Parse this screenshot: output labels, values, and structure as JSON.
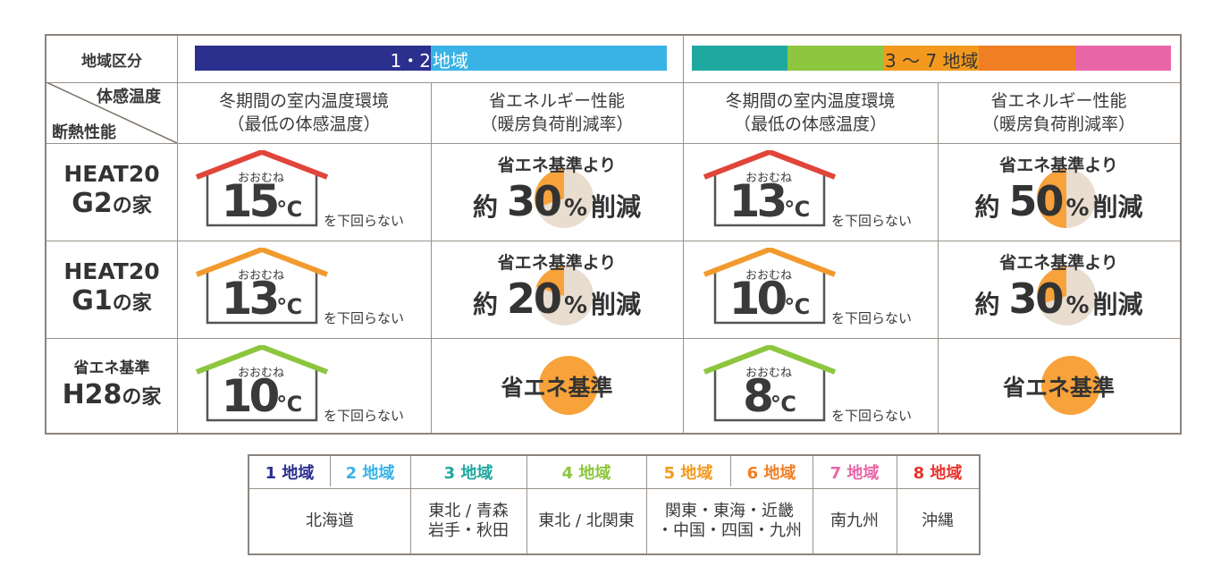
{
  "header": {
    "region_category_label": "地域区分",
    "group_a_label": "1・2地域",
    "group_a_label_left": "1・2",
    "group_a_label_right": "地域",
    "group_b_label": "3 〜 7 地域",
    "diag_top": "体感温度",
    "diag_bottom": "断熱性能",
    "col_indoor_l1": "冬期間の室内温度環境",
    "col_indoor_l2": "（最低の体感温度）",
    "col_energy_l1": "省エネルギー性能",
    "col_energy_l2": "（暖房負荷削減率）"
  },
  "rows": [
    {
      "name_l1": "HEAT20",
      "name_l2": "G2",
      "name_l2_suffix": "の家",
      "a_temp": "15",
      "a_saving": "30",
      "b_temp": "13",
      "b_saving": "50"
    },
    {
      "name_l1": "HEAT20",
      "name_l2": "G1",
      "name_l2_suffix": "の家",
      "a_temp": "13",
      "a_saving": "20",
      "b_temp": "10",
      "b_saving": "30"
    },
    {
      "name_l1": "省エネ基準",
      "name_l2": "H28",
      "name_l2_suffix": "の家",
      "a_temp": "10",
      "a_std": "省エネ基準",
      "b_temp": "8",
      "b_std": "省エネ基準"
    }
  ],
  "labels": {
    "approx": "おおむね",
    "unit": "℃",
    "not_below": "を下回らない",
    "save_prefix": "省エネ基準より",
    "save_yaku": "約",
    "save_pct": "%",
    "save_suffix": "削減"
  },
  "legend": {
    "headers": [
      {
        "label": "1 地域",
        "color": "#2b2f8e"
      },
      {
        "label": "2 地域",
        "color": "#39b3e6"
      },
      {
        "label": "3 地域",
        "color": "#1fa8a0"
      },
      {
        "label": "4 地域",
        "color": "#8dc63f"
      },
      {
        "label": "5 地域",
        "color": "#f39a1e"
      },
      {
        "label": "6 地域",
        "color": "#f07f24"
      },
      {
        "label": "7 地域",
        "color": "#e866a8"
      },
      {
        "label": "8 地域",
        "color": "#e8332a"
      }
    ],
    "areas": {
      "r12": "北海道",
      "r3_l1": "東北 / 青森",
      "r3_l2": "岩手・秋田",
      "r4": "東北 / 北関東",
      "r56_l1": "関東・東海・近畿",
      "r56_l2": "・中国・四国・九州",
      "r7": "南九州",
      "r8": "沖縄"
    }
  },
  "colors": {
    "roof_red": "#e0453a",
    "roof_orange": "#f29a2e",
    "roof_green": "#8cc63f",
    "pie_orange": "#f7a23a",
    "pie_bg": "#e9ddd0",
    "bar_navy": "#2b2f8e",
    "bar_blue": "#39b3e6",
    "bar_teal": "#1fa8a0",
    "bar_green": "#8dc63f",
    "bar_orange": "#f07f24",
    "bar_pink": "#e866a8"
  }
}
